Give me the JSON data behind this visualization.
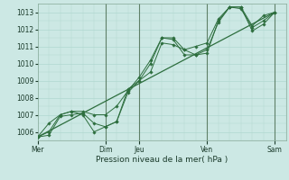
{
  "title": "Pression niveau de la mer( hPa )",
  "bg_color": "#cce8e4",
  "grid_color": "#b0d8d0",
  "line_color": "#2d6e3e",
  "dark_vline_color": "#3a5a3a",
  "ylim": [
    1005.5,
    1013.5
  ],
  "yticks": [
    1006,
    1007,
    1008,
    1009,
    1010,
    1011,
    1012,
    1013
  ],
  "xtick_labels": [
    "Mer",
    "Dim",
    "Jeu",
    "Ven",
    "Sam"
  ],
  "xtick_pos": [
    0,
    6,
    9,
    15,
    21
  ],
  "dark_vlines": [
    6,
    9,
    15,
    21
  ],
  "xlim": [
    0,
    22
  ],
  "n_points": 22,
  "series1": [
    1005.7,
    1005.8,
    1006.9,
    1007.0,
    1007.1,
    1006.5,
    1006.3,
    1006.6,
    1008.5,
    1009.0,
    1009.5,
    1011.2,
    1011.1,
    1010.8,
    1010.5,
    1010.6,
    1012.5,
    1013.3,
    1013.2,
    1012.1,
    1012.5,
    1013.0
  ],
  "series2": [
    1005.7,
    1006.0,
    1007.0,
    1007.2,
    1007.0,
    1006.0,
    1006.3,
    1006.6,
    1008.3,
    1009.0,
    1010.0,
    1011.5,
    1011.4,
    1010.5,
    1010.5,
    1010.8,
    1012.4,
    1013.3,
    1013.3,
    1011.9,
    1012.3,
    1013.0
  ],
  "series3": [
    1005.7,
    1006.5,
    1007.0,
    1007.2,
    1007.2,
    1007.0,
    1007.0,
    1007.5,
    1008.4,
    1009.2,
    1010.2,
    1011.5,
    1011.5,
    1010.8,
    1011.0,
    1011.2,
    1012.6,
    1013.3,
    1013.3,
    1012.2,
    1012.8,
    1013.0
  ],
  "trend_line_y": [
    1005.7,
    1013.0
  ],
  "trend_line_x": [
    0,
    21
  ]
}
